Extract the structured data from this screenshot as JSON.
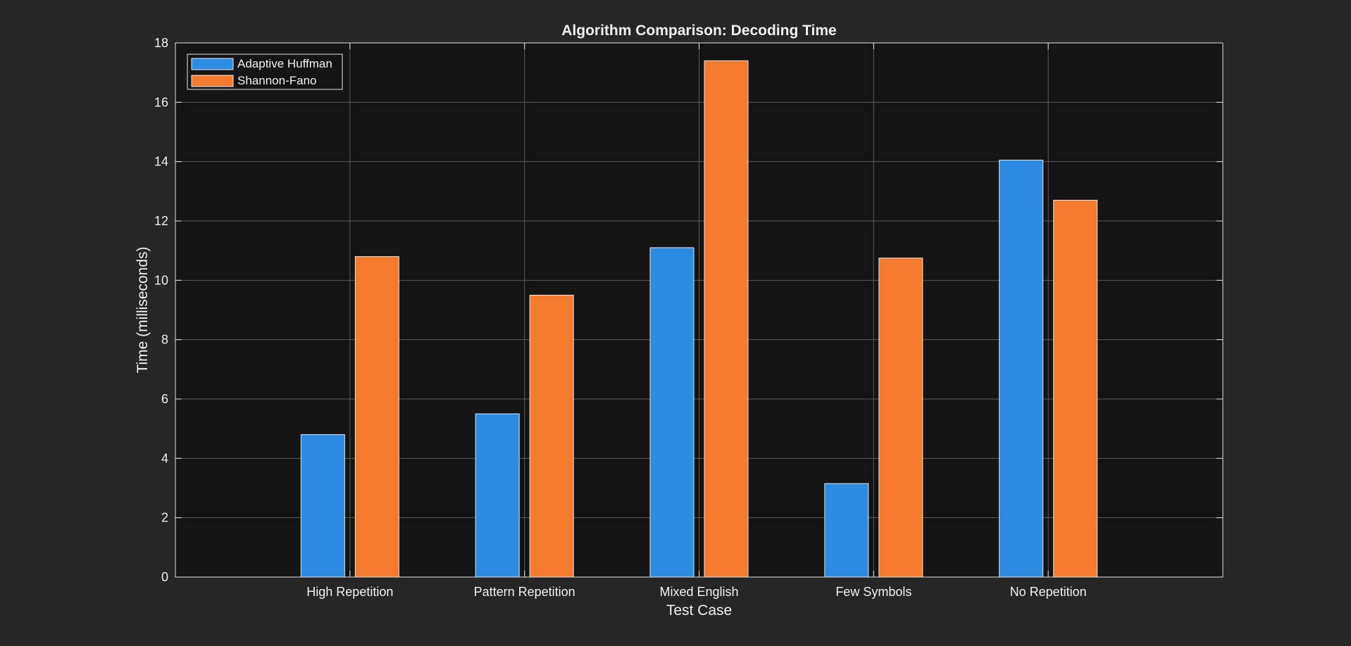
{
  "chart_data": {
    "type": "bar",
    "title": "Algorithm Comparison: Decoding Time",
    "xlabel": "Test Case",
    "ylabel": "Time (milliseconds)",
    "categories": [
      "High Repetition",
      "Pattern Repetition",
      "Mixed English",
      "Few Symbols",
      "No Repetition"
    ],
    "series": [
      {
        "name": "Adaptive Huffman",
        "color": "#2b8ae2",
        "values": [
          4.8,
          5.5,
          11.1,
          3.15,
          14.05
        ]
      },
      {
        "name": "Shannon-Fano",
        "color": "#f47a2e",
        "values": [
          10.8,
          9.5,
          17.4,
          10.75,
          12.7
        ]
      }
    ],
    "ylim": [
      0,
      18
    ],
    "yticks": [
      "0",
      "2",
      "4",
      "6",
      "8",
      "10",
      "12",
      "14",
      "16",
      "18"
    ],
    "grid": true,
    "legend_position": "top-left",
    "colors": {
      "figure_background": "#262626",
      "axes_background": "#141414",
      "axis_color": "#e6e6e6",
      "grid_color": "#5a5a5a",
      "text_color": "#f0f0f0"
    }
  }
}
